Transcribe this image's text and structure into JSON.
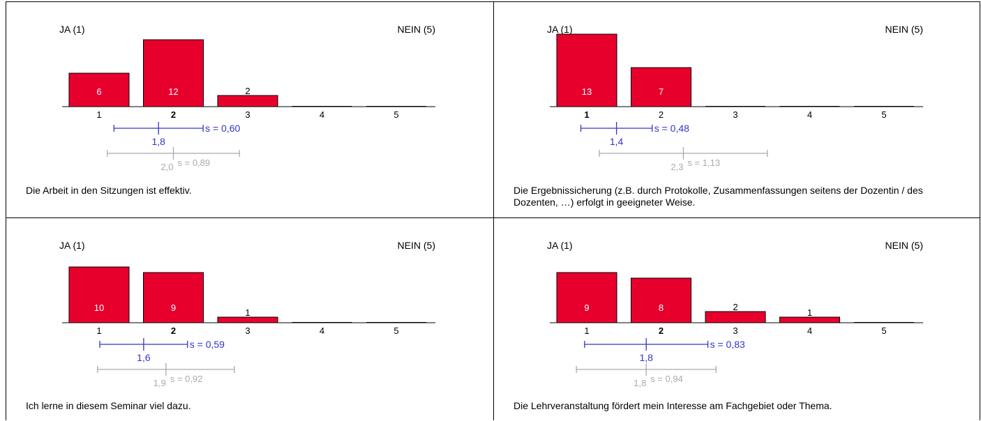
{
  "colors": {
    "bar": "#e8002d",
    "bar_stroke": "#000000",
    "mean": "#3333cc",
    "norm": "#aaaaaa",
    "bar_label_inside": "#ffffff"
  },
  "chart_data": [
    {
      "type": "bar",
      "left_label": "JA (1)",
      "right_label": "NEIN (5)",
      "categories": [
        "1",
        "2",
        "3",
        "4",
        "5"
      ],
      "values": [
        6,
        12,
        2,
        0,
        0
      ],
      "bold_category": 1,
      "mean": {
        "value": 1.8,
        "label": "1,8",
        "s_label": "s = 0,60"
      },
      "norm": {
        "value": 2.0,
        "label": "2,0",
        "s_label": "s = 0,89",
        "sd": 0.89
      },
      "question": "Die Arbeit in den Sitzungen ist effektiv."
    },
    {
      "type": "bar",
      "left_label": "JA (1)",
      "right_label": "NEIN (5)",
      "categories": [
        "1",
        "2",
        "3",
        "4",
        "5"
      ],
      "values": [
        13,
        7,
        0,
        0,
        0
      ],
      "bold_category": 0,
      "mean": {
        "value": 1.4,
        "label": "1,4",
        "s_label": "s = 0,48"
      },
      "norm": {
        "value": 2.3,
        "label": "2,3",
        "s_label": "s = 1,13",
        "sd": 1.13
      },
      "question": "Die Ergebnissicherung (z.B. durch Protokolle, Zusammenfassungen seitens der Dozentin / des Dozenten, …) erfolgt in geeigneter Weise."
    },
    {
      "type": "bar",
      "left_label": "JA (1)",
      "right_label": "NEIN (5)",
      "categories": [
        "1",
        "2",
        "3",
        "4",
        "5"
      ],
      "values": [
        10,
        9,
        1,
        0,
        0
      ],
      "bold_category": 1,
      "mean": {
        "value": 1.6,
        "label": "1,6",
        "s_label": "s = 0,59"
      },
      "norm": {
        "value": 1.9,
        "label": "1,9",
        "s_label": "s = 0,92",
        "sd": 0.92
      },
      "question": "Ich lerne in diesem Seminar viel dazu."
    },
    {
      "type": "bar",
      "left_label": "JA (1)",
      "right_label": "NEIN (5)",
      "categories": [
        "1",
        "2",
        "3",
        "4",
        "5"
      ],
      "values": [
        9,
        8,
        2,
        1,
        0
      ],
      "bold_category": 1,
      "mean": {
        "value": 1.8,
        "label": "1,8",
        "s_label": "s = 0,83"
      },
      "norm": {
        "value": 1.8,
        "label": "1,8",
        "s_label": "s = 0,94",
        "sd": 0.94
      },
      "question": "Die Lehrveranstaltung fördert mein Interesse am Fachgebiet oder Thema."
    }
  ]
}
